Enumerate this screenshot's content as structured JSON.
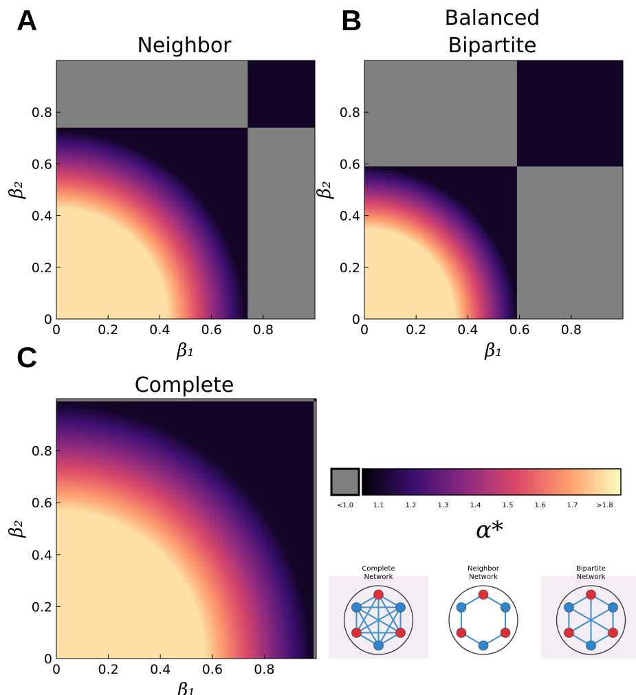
{
  "chart_data": [
    {
      "type": "heatmap",
      "panel_label": "A",
      "title": [
        "Neighbor"
      ],
      "xlabel": "β₁",
      "ylabel": "β₂",
      "xlim": [
        0,
        1
      ],
      "ylim": [
        0,
        1
      ],
      "xticks": [
        0,
        0.2,
        0.4,
        0.6,
        0.8
      ],
      "yticks": [
        0,
        0.2,
        0.4,
        0.6,
        0.8
      ],
      "threshold": 0.74,
      "contours": [
        {
          "level": 1.8,
          "radius": 0.43
        },
        {
          "level": 1.1,
          "radius": 0.73
        }
      ]
    },
    {
      "type": "heatmap",
      "panel_label": "B",
      "title": [
        "Balanced",
        "Bipartite"
      ],
      "xlabel": "β₁",
      "ylabel": "β₂",
      "xlim": [
        0,
        1
      ],
      "ylim": [
        0,
        1
      ],
      "xticks": [
        0,
        0.2,
        0.4,
        0.6,
        0.8
      ],
      "yticks": [
        0,
        0.2,
        0.4,
        0.6,
        0.8
      ],
      "threshold": 0.59,
      "contours": [
        {
          "level": 1.8,
          "radius": 0.35
        },
        {
          "level": 1.1,
          "radius": 0.59
        }
      ]
    },
    {
      "type": "heatmap",
      "panel_label": "C",
      "title": [
        "Complete"
      ],
      "xlabel": "β₁",
      "ylabel": "β₂",
      "xlim": [
        0,
        1
      ],
      "ylim": [
        0,
        1
      ],
      "xticks": [
        0,
        0.2,
        0.4,
        0.6,
        0.8
      ],
      "yticks": [
        0,
        0.2,
        0.4,
        0.6,
        0.8
      ],
      "threshold": 0.99,
      "contours": [
        {
          "level": 1.8,
          "radius": 0.57
        },
        {
          "level": 1.1,
          "radius": 0.98
        }
      ]
    },
    {
      "type": "colorbar",
      "label": "α*",
      "clim": [
        1.05,
        1.85
      ],
      "under_color": "#808080",
      "colormap": [
        "#000004",
        "#3b0f70",
        "#8c2981",
        "#de4968",
        "#fe9f6d",
        "#fcfdbf"
      ],
      "ticks": [
        {
          "value": 1.0,
          "label": "<1.0"
        },
        1.1,
        1.2,
        1.3,
        1.4,
        1.5,
        1.6,
        1.7,
        {
          "value": 1.8,
          "label": ">1.8"
        }
      ]
    }
  ],
  "networks": [
    {
      "label": [
        "Complete",
        "Network"
      ],
      "edges": "complete"
    },
    {
      "label": [
        "Neighbor",
        "Network"
      ],
      "edges": "ring"
    },
    {
      "label": [
        "Bipartite",
        "Network"
      ],
      "edges": "bipartite"
    }
  ]
}
